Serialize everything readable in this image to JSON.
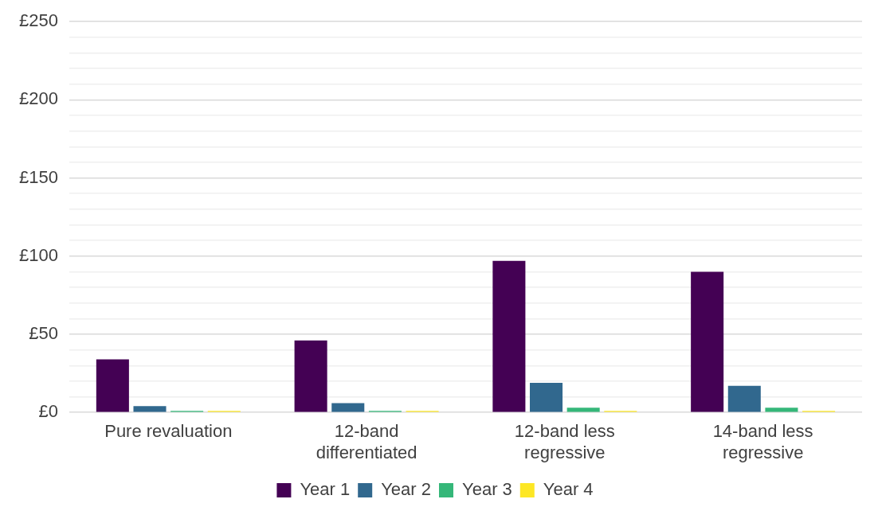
{
  "chart_data": {
    "type": "bar",
    "categories": [
      "Pure revaluation",
      "12-band differentiated",
      "12-band less regressive",
      "14-band less regressive"
    ],
    "series": [
      {
        "name": "Year 1",
        "color": "#440154",
        "values": [
          34,
          46,
          97,
          90
        ]
      },
      {
        "name": "Year 2",
        "color": "#31688e",
        "values": [
          4,
          6,
          19,
          17
        ]
      },
      {
        "name": "Year 3",
        "color": "#35b779",
        "values": [
          1,
          1,
          3,
          3
        ]
      },
      {
        "name": "Year 4",
        "color": "#fde725",
        "values": [
          1,
          1,
          1,
          1
        ]
      }
    ],
    "ylim": [
      0,
      250
    ],
    "yticks": [
      {
        "value": 0,
        "label": "£0"
      },
      {
        "value": 10,
        "label": null
      },
      {
        "value": 20,
        "label": null
      },
      {
        "value": 30,
        "label": null
      },
      {
        "value": 40,
        "label": null
      },
      {
        "value": 50,
        "label": "£50"
      },
      {
        "value": 60,
        "label": null
      },
      {
        "value": 70,
        "label": null
      },
      {
        "value": 80,
        "label": null
      },
      {
        "value": 90,
        "label": null
      },
      {
        "value": 100,
        "label": "£100"
      },
      {
        "value": 110,
        "label": null
      },
      {
        "value": 120,
        "label": null
      },
      {
        "value": 130,
        "label": null
      },
      {
        "value": 140,
        "label": null
      },
      {
        "value": 150,
        "label": "£150"
      },
      {
        "value": 160,
        "label": null
      },
      {
        "value": 170,
        "label": null
      },
      {
        "value": 180,
        "label": null
      },
      {
        "value": 190,
        "label": null
      },
      {
        "value": 200,
        "label": "£200"
      },
      {
        "value": 210,
        "label": null
      },
      {
        "value": 220,
        "label": null
      },
      {
        "value": 230,
        "label": null
      },
      {
        "value": 240,
        "label": null
      },
      {
        "value": 250,
        "label": "£250"
      }
    ],
    "grid": "y",
    "legend": "bottom"
  }
}
